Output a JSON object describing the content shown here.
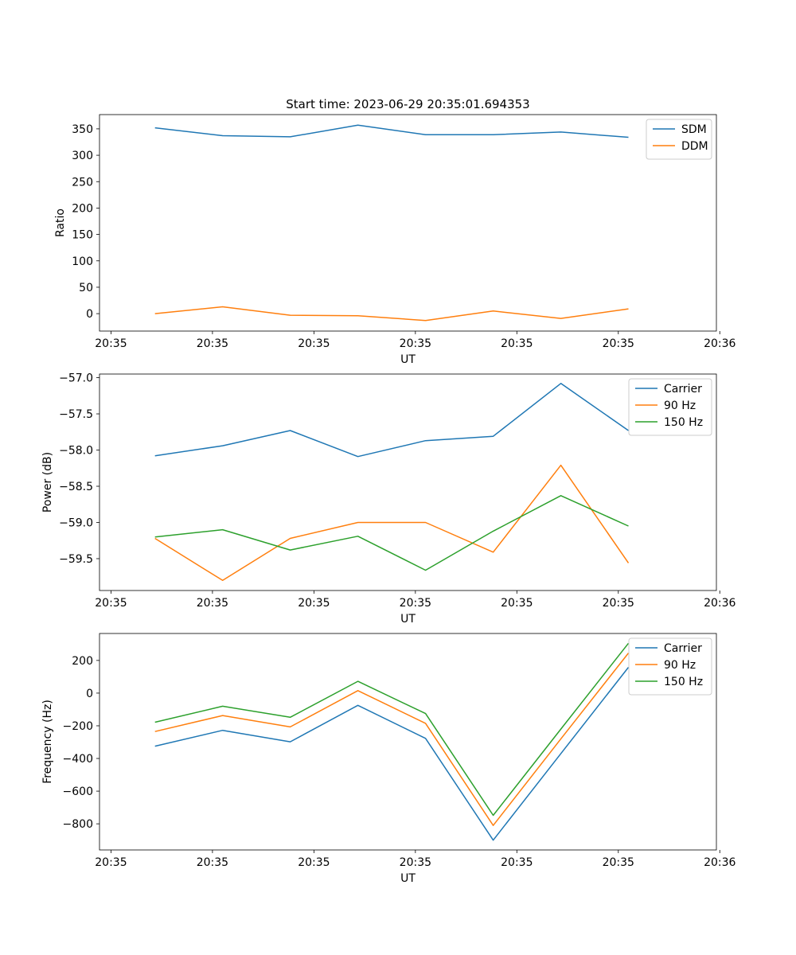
{
  "figure": {
    "title": "Start time: 2023-06-29 20:35:01.694353"
  },
  "chart_data": [
    {
      "type": "line",
      "xlabel": "UT",
      "ylabel": "Ratio",
      "x": [
        1,
        2,
        3,
        4,
        5,
        6,
        7,
        8
      ],
      "xlim": [
        0.18,
        9.3
      ],
      "x_ticks": [
        {
          "x": 0.35,
          "label": "20:35"
        },
        {
          "x": 1.85,
          "label": "20:35"
        },
        {
          "x": 3.35,
          "label": "20:35"
        },
        {
          "x": 4.85,
          "label": "20:35"
        },
        {
          "x": 6.35,
          "label": "20:35"
        },
        {
          "x": 7.85,
          "label": "20:35"
        },
        {
          "x": 9.35,
          "label": "20:36"
        }
      ],
      "ylim": [
        -33,
        377
      ],
      "y_ticks": [
        0,
        50,
        100,
        150,
        200,
        250,
        300,
        350
      ],
      "grid": false,
      "legend": "upper right",
      "series": [
        {
          "name": "SDM",
          "color": "#1f77b4",
          "values": [
            352,
            337,
            335,
            357,
            339,
            339,
            344,
            334
          ]
        },
        {
          "name": "DDM",
          "color": "#ff7f0e",
          "values": [
            0,
            13,
            -3,
            -4,
            -13,
            5,
            -9,
            9
          ]
        }
      ]
    },
    {
      "type": "line",
      "xlabel": "UT",
      "ylabel": "Power (dB)",
      "x": [
        1,
        2,
        3,
        4,
        5,
        6,
        7,
        8
      ],
      "xlim": [
        0.18,
        9.3
      ],
      "x_ticks": [
        {
          "x": 0.35,
          "label": "20:35"
        },
        {
          "x": 1.85,
          "label": "20:35"
        },
        {
          "x": 3.35,
          "label": "20:35"
        },
        {
          "x": 4.85,
          "label": "20:35"
        },
        {
          "x": 6.35,
          "label": "20:35"
        },
        {
          "x": 7.85,
          "label": "20:35"
        },
        {
          "x": 9.35,
          "label": "20:36"
        }
      ],
      "ylim": [
        -59.94,
        -56.95
      ],
      "y_ticks": [
        -59.5,
        -59.0,
        -58.5,
        -58.0,
        -57.5,
        -57.0
      ],
      "y_tick_labels": [
        "−59.5",
        "−59.0",
        "−58.5",
        "−58.0",
        "−57.5",
        "−57.0"
      ],
      "grid": false,
      "legend": "upper right",
      "series": [
        {
          "name": "Carrier",
          "color": "#1f77b4",
          "values": [
            -58.08,
            -57.94,
            -57.73,
            -58.09,
            -57.87,
            -57.81,
            -57.08,
            -57.73
          ]
        },
        {
          "name": "90 Hz",
          "color": "#ff7f0e",
          "values": [
            -59.22,
            -59.8,
            -59.22,
            -59.0,
            -59.0,
            -59.41,
            -58.21,
            -59.56
          ]
        },
        {
          "name": "150 Hz",
          "color": "#2ca02c",
          "values": [
            -59.2,
            -59.1,
            -59.38,
            -59.19,
            -59.66,
            -59.12,
            -58.63,
            -59.05
          ]
        }
      ]
    },
    {
      "type": "line",
      "xlabel": "UT",
      "ylabel": "Frequency (Hz)",
      "x": [
        1,
        2,
        3,
        4,
        5,
        6,
        7,
        8
      ],
      "xlim": [
        0.18,
        9.3
      ],
      "x_ticks": [
        {
          "x": 0.35,
          "label": "20:35"
        },
        {
          "x": 1.85,
          "label": "20:35"
        },
        {
          "x": 3.35,
          "label": "20:35"
        },
        {
          "x": 4.85,
          "label": "20:35"
        },
        {
          "x": 6.35,
          "label": "20:35"
        },
        {
          "x": 7.85,
          "label": "20:35"
        },
        {
          "x": 9.35,
          "label": "20:36"
        }
      ],
      "ylim": [
        -960,
        365
      ],
      "y_ticks": [
        -800,
        -600,
        -400,
        -200,
        0,
        200
      ],
      "y_tick_labels": [
        "−800",
        "−600",
        "−400",
        "−200",
        "0",
        "200"
      ],
      "grid": false,
      "legend": "upper right",
      "series": [
        {
          "name": "Carrier",
          "color": "#1f77b4",
          "values": [
            -325,
            -228,
            -298,
            -75,
            -277,
            -900,
            -370,
            158
          ]
        },
        {
          "name": "90 Hz",
          "color": "#ff7f0e",
          "values": [
            -235,
            -137,
            -207,
            15,
            -185,
            -810,
            -280,
            245
          ]
        },
        {
          "name": "150 Hz",
          "color": "#2ca02c",
          "values": [
            -178,
            -80,
            -148,
            72,
            -125,
            -748,
            -220,
            305
          ]
        }
      ]
    }
  ]
}
